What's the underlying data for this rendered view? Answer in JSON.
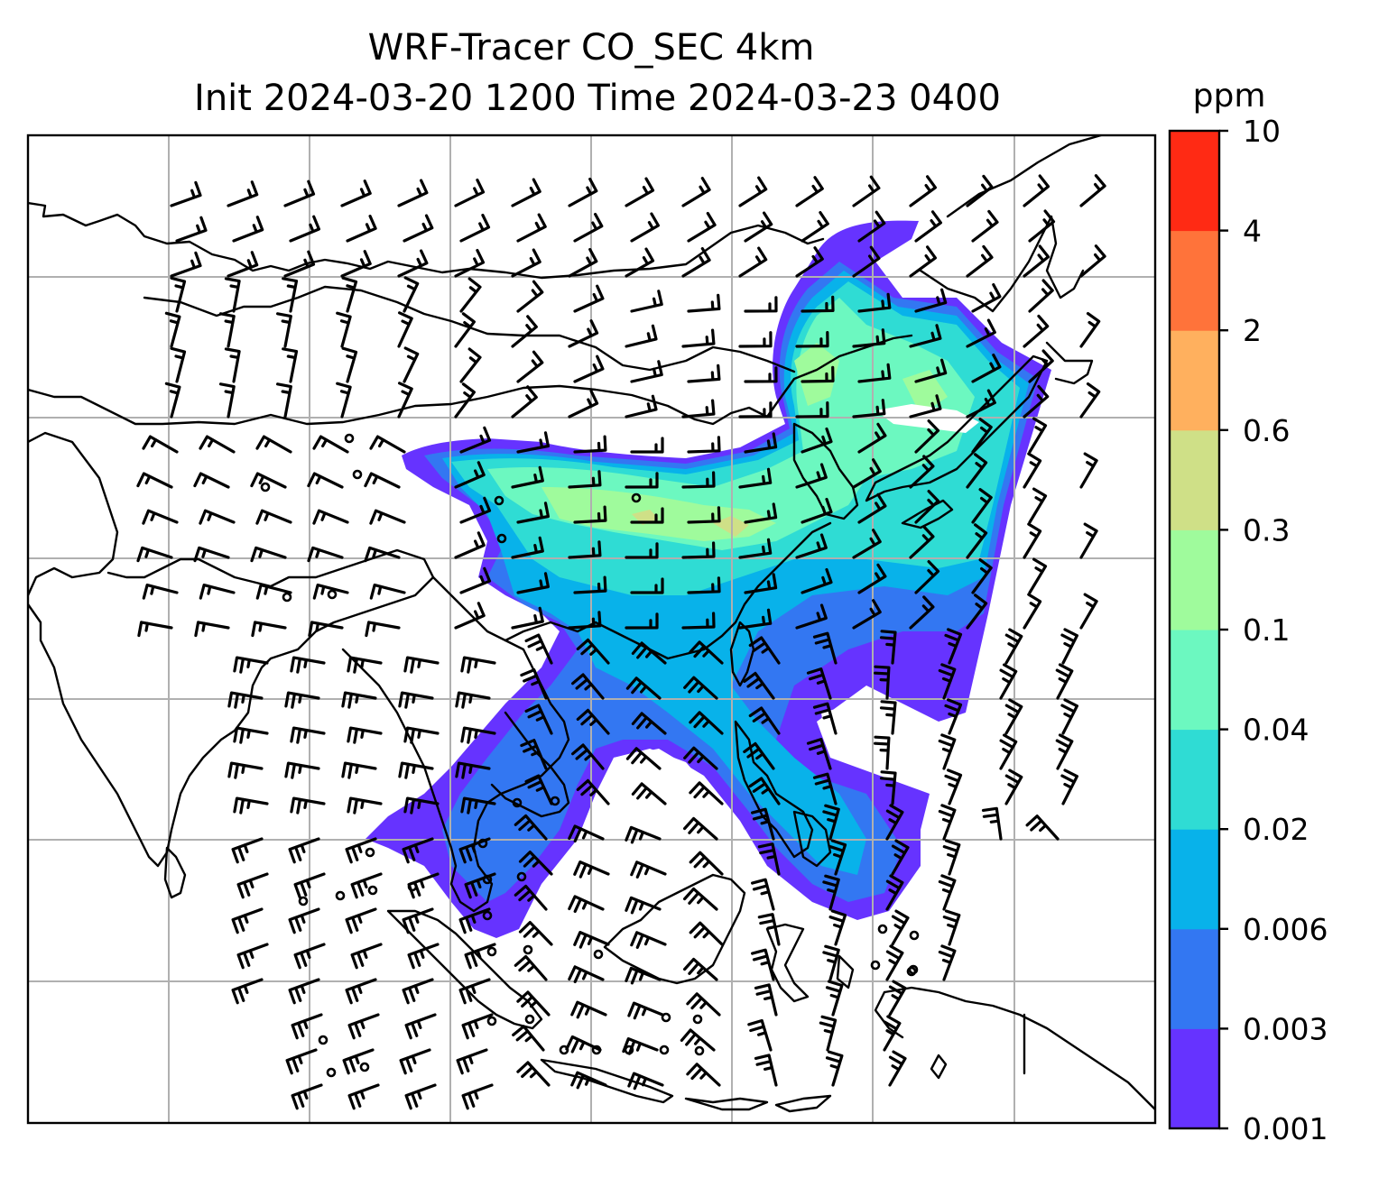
{
  "title": {
    "line1": "WRF-Tracer CO_SEC 4km",
    "line2": "Init 2024-03-20 1200 Time 2024-03-23 0400"
  },
  "colorbar": {
    "unit": "ppm",
    "levels": [
      "0.001",
      "0.003",
      "0.006",
      "0.02",
      "0.04",
      "0.1",
      "0.3",
      "0.6",
      "2",
      "4",
      "10"
    ],
    "colors": [
      "#6633ff",
      "#3377f2",
      "#08b2ea",
      "#2fdcd4",
      "#6cf8c0",
      "#9ffb9c",
      "#cfe087",
      "#ffb05e",
      "#ff733a",
      "#ff2a14"
    ]
  },
  "map": {
    "field": "CO_SEC tracer concentration",
    "overlay": "wind barbs",
    "gridlines": true
  }
}
